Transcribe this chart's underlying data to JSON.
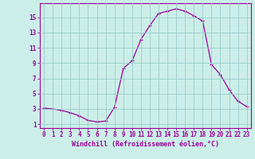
{
  "x_values": [
    0,
    1,
    2,
    3,
    4,
    5,
    6,
    7,
    8,
    9,
    10,
    11,
    12,
    13,
    14,
    15,
    16,
    17,
    18,
    19,
    20,
    21,
    22,
    23
  ],
  "y_values": [
    3.1,
    3.0,
    2.8,
    2.5,
    2.1,
    1.5,
    1.3,
    1.4,
    3.2,
    8.3,
    9.3,
    12.1,
    13.9,
    15.5,
    15.8,
    16.1,
    15.8,
    15.2,
    14.5,
    8.8,
    7.5,
    5.5,
    4.0,
    3.3
  ],
  "line_color": "#990099",
  "marker": "+",
  "marker_size": 3,
  "marker_linewidth": 0.8,
  "bg_color": "#cceee8",
  "grid_color": "#99cccc",
  "ylabel_ticks": [
    1,
    3,
    5,
    7,
    9,
    11,
    13,
    15
  ],
  "ylim": [
    0.5,
    16.8
  ],
  "xlim": [
    -0.5,
    23.5
  ],
  "xlabel": "Windchill (Refroidissement éolien,°C)",
  "xlabel_color": "#990099",
  "tick_color": "#990099",
  "axis_color": "#990099",
  "font_size_xlabel": 6,
  "font_size_ticks": 5.5,
  "linewidth": 0.9
}
